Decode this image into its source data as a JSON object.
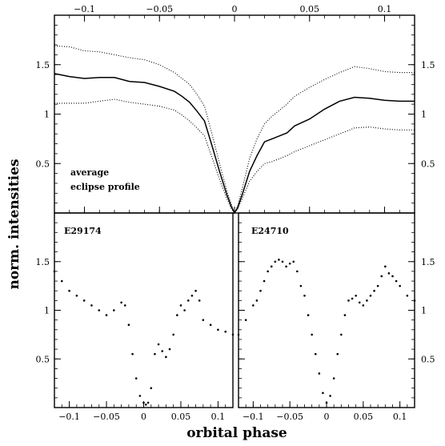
{
  "chart_data": [
    {
      "type": "line",
      "panel": "top",
      "title": "",
      "xlabel": "orbital phase",
      "ylabel": "norm. intensities",
      "xlim": [
        -0.12,
        0.12
      ],
      "ylim": [
        0,
        2
      ],
      "x_ticks": [
        -0.1,
        -0.05,
        0,
        0.05,
        0.1
      ],
      "x_tick_labels": [
        "−0.1",
        "−0.05",
        "0",
        "0.05",
        "0.1"
      ],
      "y_ticks": [
        0.5,
        1,
        1.5
      ],
      "y_tick_labels": [
        "0.5",
        "1",
        "1.5"
      ],
      "annotation": [
        "average",
        "eclipse profile"
      ],
      "series": [
        {
          "style": "solid",
          "x": [
            -0.12,
            -0.11,
            -0.1,
            -0.09,
            -0.08,
            -0.07,
            -0.06,
            -0.05,
            -0.04,
            -0.035,
            -0.03,
            -0.025,
            -0.02,
            -0.015,
            -0.01,
            -0.005,
            -0.002,
            0,
            0.002,
            0.005,
            0.01,
            0.015,
            0.02,
            0.025,
            0.03,
            0.035,
            0.04,
            0.05,
            0.06,
            0.07,
            0.08,
            0.09,
            0.1,
            0.11,
            0.12
          ],
          "values": [
            1.41,
            1.38,
            1.36,
            1.37,
            1.37,
            1.33,
            1.32,
            1.28,
            1.23,
            1.18,
            1.12,
            1.03,
            0.93,
            0.68,
            0.42,
            0.18,
            0.06,
            0.0,
            0.05,
            0.18,
            0.42,
            0.58,
            0.72,
            0.75,
            0.78,
            0.81,
            0.88,
            0.95,
            1.05,
            1.13,
            1.17,
            1.16,
            1.14,
            1.13,
            1.13
          ]
        },
        {
          "style": "dotted",
          "x": [
            -0.12,
            -0.11,
            -0.1,
            -0.09,
            -0.08,
            -0.07,
            -0.06,
            -0.05,
            -0.04,
            -0.035,
            -0.03,
            -0.025,
            -0.02,
            -0.015,
            -0.01,
            -0.005,
            -0.002,
            0,
            0.002,
            0.005,
            0.01,
            0.015,
            0.02,
            0.025,
            0.03,
            0.035,
            0.04,
            0.05,
            0.06,
            0.07,
            0.08,
            0.09,
            0.1,
            0.11,
            0.12
          ],
          "values": [
            1.69,
            1.68,
            1.64,
            1.63,
            1.6,
            1.57,
            1.55,
            1.5,
            1.42,
            1.36,
            1.3,
            1.2,
            1.08,
            0.8,
            0.5,
            0.22,
            0.08,
            0.0,
            0.07,
            0.24,
            0.55,
            0.75,
            0.9,
            0.98,
            1.04,
            1.1,
            1.18,
            1.27,
            1.35,
            1.42,
            1.48,
            1.46,
            1.43,
            1.42,
            1.42
          ]
        },
        {
          "style": "dotted",
          "x": [
            -0.12,
            -0.11,
            -0.1,
            -0.09,
            -0.08,
            -0.07,
            -0.06,
            -0.05,
            -0.04,
            -0.035,
            -0.03,
            -0.025,
            -0.02,
            -0.015,
            -0.01,
            -0.005,
            -0.002,
            0,
            0.002,
            0.005,
            0.01,
            0.015,
            0.02,
            0.025,
            0.03,
            0.035,
            0.04,
            0.05,
            0.06,
            0.07,
            0.08,
            0.09,
            0.1,
            0.11,
            0.12
          ],
          "values": [
            1.11,
            1.11,
            1.11,
            1.13,
            1.15,
            1.12,
            1.1,
            1.08,
            1.04,
            0.99,
            0.93,
            0.86,
            0.78,
            0.56,
            0.34,
            0.14,
            0.04,
            0.0,
            0.04,
            0.14,
            0.32,
            0.42,
            0.5,
            0.52,
            0.55,
            0.58,
            0.62,
            0.68,
            0.74,
            0.8,
            0.86,
            0.87,
            0.85,
            0.84,
            0.84
          ]
        }
      ]
    },
    {
      "type": "scatter",
      "panel": "bottom-left",
      "title": "",
      "annotation": "E29174",
      "xlim": [
        -0.12,
        0.12
      ],
      "ylim": [
        0,
        2
      ],
      "x_ticks": [
        -0.1,
        -0.05,
        0,
        0.05,
        0.1
      ],
      "x_tick_labels": [
        "−0.1",
        "−0.05",
        "0",
        "0.05",
        "0.1"
      ],
      "y_ticks": [
        0.5,
        1,
        1.5
      ],
      "y_tick_labels": [
        "0.5",
        "1",
        "1.5"
      ],
      "series": [
        {
          "x": [
            -0.12,
            -0.11,
            -0.1,
            -0.09,
            -0.08,
            -0.07,
            -0.06,
            -0.05,
            -0.04,
            -0.03,
            -0.025,
            -0.02,
            -0.015,
            -0.01,
            -0.005,
            0,
            0.003,
            0.006,
            0.01,
            0.015,
            0.02,
            0.025,
            0.03,
            0.035,
            0.04,
            0.045,
            0.05,
            0.055,
            0.06,
            0.065,
            0.07,
            0.075,
            0.08,
            0.09,
            0.1,
            0.11,
            0.12
          ],
          "values": [
            1.4,
            1.3,
            1.2,
            1.15,
            1.1,
            1.05,
            1.0,
            0.95,
            1.0,
            1.08,
            1.05,
            0.85,
            0.55,
            0.3,
            0.12,
            0.05,
            0.03,
            0.05,
            0.2,
            0.55,
            0.65,
            0.58,
            0.52,
            0.6,
            0.75,
            0.95,
            1.05,
            1.0,
            1.1,
            1.15,
            1.2,
            1.1,
            0.9,
            0.85,
            0.8,
            0.78,
            0.75
          ]
        }
      ]
    },
    {
      "type": "scatter",
      "panel": "bottom-right",
      "title": "",
      "annotation": "E24710",
      "xlim": [
        -0.12,
        0.12
      ],
      "ylim": [
        0,
        2
      ],
      "x_ticks": [
        -0.1,
        -0.05,
        0,
        0.05,
        0.1
      ],
      "x_tick_labels": [
        "−0.1",
        "−0.05",
        "0",
        "0.05",
        "0.1"
      ],
      "y_ticks": [
        0.5,
        1,
        1.5
      ],
      "y_tick_labels": [
        "0.5",
        "1",
        "1.5"
      ],
      "series": [
        {
          "x": [
            -0.12,
            -0.11,
            -0.1,
            -0.095,
            -0.09,
            -0.085,
            -0.08,
            -0.075,
            -0.07,
            -0.065,
            -0.06,
            -0.055,
            -0.05,
            -0.045,
            -0.04,
            -0.035,
            -0.03,
            -0.025,
            -0.02,
            -0.015,
            -0.01,
            -0.005,
            0,
            0.005,
            0.01,
            0.015,
            0.02,
            0.025,
            0.03,
            0.035,
            0.04,
            0.045,
            0.05,
            0.055,
            0.06,
            0.065,
            0.07,
            0.075,
            0.08,
            0.085,
            0.09,
            0.095,
            0.1,
            0.11,
            0.12
          ],
          "values": [
            0.75,
            0.9,
            1.05,
            1.1,
            1.2,
            1.3,
            1.4,
            1.45,
            1.5,
            1.52,
            1.5,
            1.45,
            1.48,
            1.5,
            1.4,
            1.25,
            1.15,
            0.95,
            0.75,
            0.55,
            0.35,
            0.15,
            0.05,
            0.12,
            0.3,
            0.55,
            0.75,
            0.95,
            1.1,
            1.12,
            1.15,
            1.08,
            1.05,
            1.1,
            1.15,
            1.2,
            1.25,
            1.35,
            1.45,
            1.38,
            1.35,
            1.3,
            1.25,
            1.15,
            1.1
          ]
        }
      ]
    }
  ]
}
